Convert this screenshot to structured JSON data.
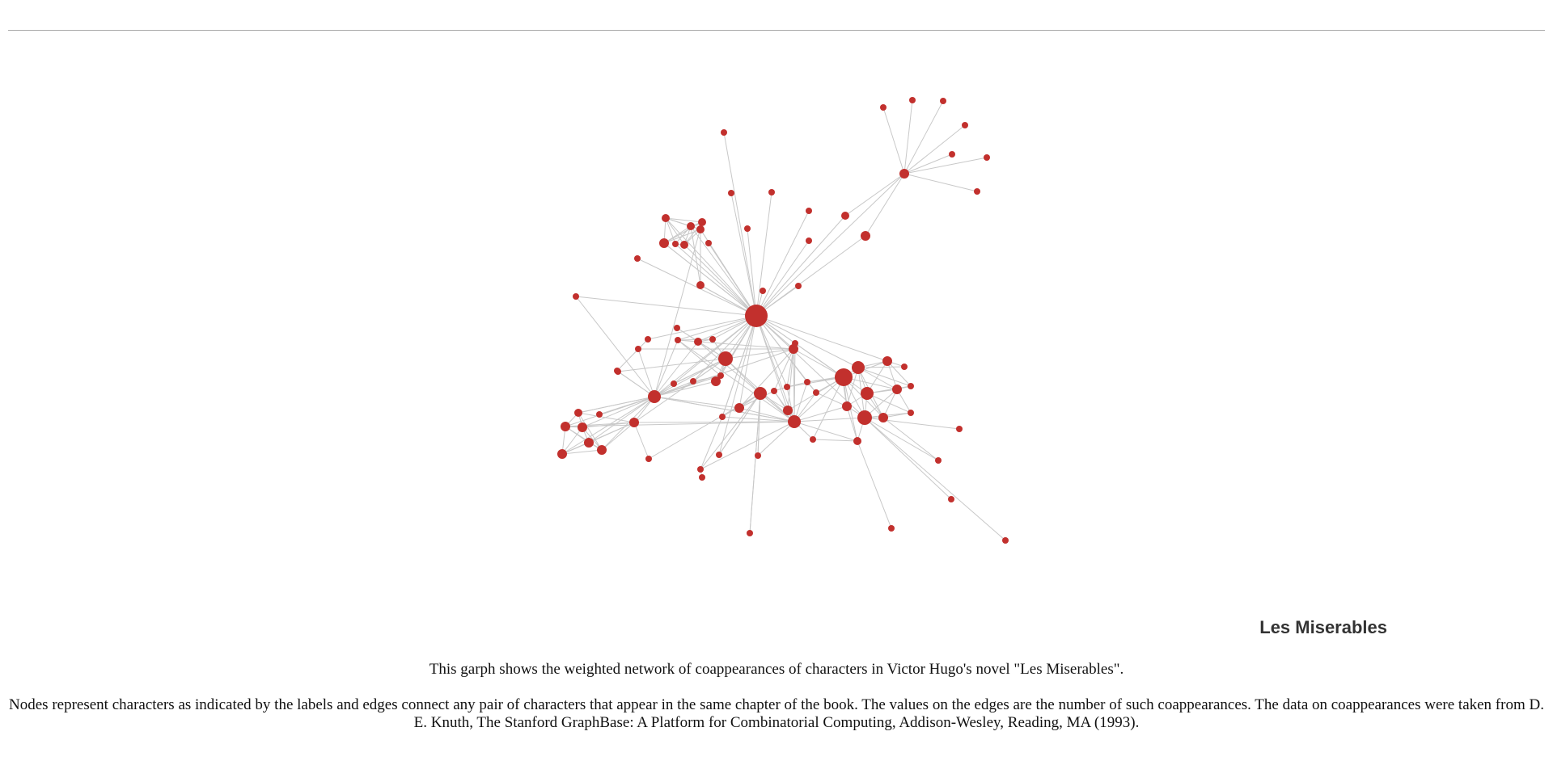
{
  "graph": {
    "title": "Les Miserables",
    "node_color": "#c2302d",
    "edge_color": "#c8c8c8"
  },
  "caption": {
    "line1": "This garph shows the weighted network of coappearances of characters in Victor Hugo's novel \"Les Miserables\".",
    "line2": "Nodes represent characters as indicated by the labels and edges connect any pair of characters that appear in the same chapter of the book. The values on the edges are the number of such coappearances. The data on coappearances were taken from D. E. Knuth, The Stanford GraphBase: A Platform for Combinatorial Computing, Addison-Wesley, Reading, MA (1993)."
  }
}
